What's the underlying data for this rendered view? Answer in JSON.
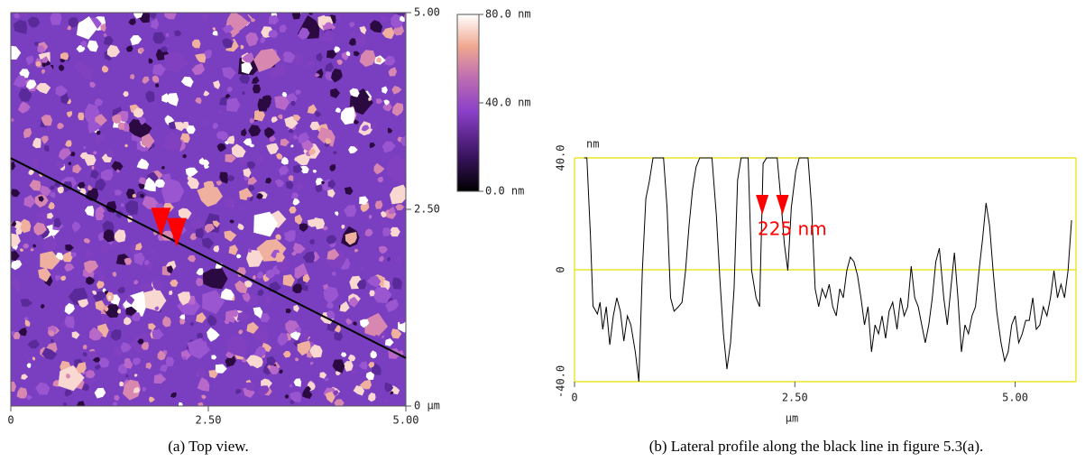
{
  "chart_data": [
    {
      "type": "image",
      "xlim": [
        0,
        5
      ],
      "ylim": [
        0,
        5
      ],
      "xticks": [
        {
          "value": 0,
          "label": "0"
        },
        {
          "value": 2.5,
          "label": "2.50"
        },
        {
          "value": 5,
          "label": "5.00"
        }
      ],
      "yticks": [
        {
          "value": 0,
          "label": "0 µm"
        },
        {
          "value": 2.5,
          "label": "2.50"
        },
        {
          "value": 5,
          "label": "5.00"
        }
      ],
      "clim": [
        0,
        80
      ],
      "cticks": [
        {
          "value": 0,
          "label": "0.0 nm"
        },
        {
          "value": 40,
          "label": "40.0 nm"
        },
        {
          "value": 80,
          "label": "80.0 nm"
        }
      ],
      "line": {
        "x": [
          0,
          5
        ],
        "y": [
          3.15,
          0.61
        ],
        "color": "#000000"
      },
      "markers": {
        "x": [
          1.9,
          2.1
        ],
        "y": [
          2.29,
          2.16
        ],
        "color": "#ff0000"
      },
      "caption": "(a) Top view."
    },
    {
      "type": "line",
      "x_label": "µm",
      "y_label": "nm",
      "annotation": "225 nm",
      "xlim": [
        0,
        5.69
      ],
      "ylim": [
        -40,
        40
      ],
      "xticks": [
        {
          "value": 0,
          "label": "0"
        },
        {
          "value": 2.5,
          "label": "2.50"
        },
        {
          "value": 5,
          "label": "5.00"
        }
      ],
      "yticks": [
        {
          "value": -40,
          "label": "-40.0"
        },
        0,
        {
          "value": 40,
          "label": "40.0"
        }
      ],
      "grid_color": "#e8e000",
      "color": "#000000",
      "markers": {
        "x": [
          2.13,
          2.36
        ],
        "color": "#ff0000"
      },
      "x": [
        0.11,
        0.14,
        0.18,
        0.21,
        0.26,
        0.29,
        0.32,
        0.36,
        0.4,
        0.44,
        0.48,
        0.52,
        0.56,
        0.6,
        0.64,
        0.69,
        0.73,
        0.77,
        0.81,
        0.85,
        0.89,
        1.01,
        1.05,
        1.09,
        1.13,
        1.18,
        1.22,
        1.26,
        1.3,
        1.34,
        1.38,
        1.42,
        1.56,
        1.61,
        1.65,
        1.69,
        1.73,
        1.77,
        1.81,
        1.85,
        1.89,
        1.97,
        2.01,
        2.06,
        2.1,
        2.14,
        2.18,
        2.3,
        2.34,
        2.38,
        2.42,
        2.46,
        2.51,
        2.55,
        2.65,
        2.69,
        2.73,
        2.77,
        2.81,
        2.85,
        2.89,
        2.93,
        2.97,
        3.01,
        3.05,
        3.09,
        3.13,
        3.17,
        3.21,
        3.25,
        3.29,
        3.33,
        3.37,
        3.41,
        3.45,
        3.49,
        3.53,
        3.57,
        3.61,
        3.66,
        3.7,
        3.74,
        3.78,
        3.82,
        3.86,
        3.9,
        3.94,
        3.98,
        4.02,
        4.06,
        4.1,
        4.14,
        4.19,
        4.23,
        4.27,
        4.31,
        4.35,
        4.39,
        4.43,
        4.47,
        4.51,
        4.55,
        4.59,
        4.63,
        4.67,
        4.71,
        4.75,
        4.79,
        4.84,
        4.88,
        4.92,
        4.96,
        5.0,
        5.04,
        5.08,
        5.12,
        5.16,
        5.2,
        5.24,
        5.28,
        5.32,
        5.36,
        5.4,
        5.44,
        5.48,
        5.52,
        5.56,
        5.6,
        5.64
      ],
      "values": [
        40,
        40,
        12.6,
        -13,
        -15.8,
        -11.6,
        -21.3,
        -13.2,
        -26.8,
        -16.5,
        -10,
        -14.8,
        -25.5,
        -16.5,
        -19.7,
        -29.4,
        -40,
        -0.3,
        25.5,
        31.9,
        40,
        40,
        22.3,
        -10,
        -14.8,
        -13.2,
        -11.6,
        -0.3,
        15.8,
        28.7,
        36.8,
        40,
        40,
        19.4,
        -3.5,
        -22.9,
        -35.5,
        -26.1,
        -6.8,
        32,
        40,
        40,
        -0.3,
        -10,
        -13.2,
        38,
        40,
        40,
        25.5,
        9.4,
        -0.3,
        22.3,
        35.2,
        40,
        40,
        22.3,
        -6.8,
        -13.2,
        -6.8,
        -10,
        -5.2,
        -13.2,
        -16.5,
        -6.8,
        -10,
        -0.3,
        4.5,
        2.9,
        -1.9,
        -10,
        -19.7,
        -13.2,
        -29.4,
        -19.7,
        -22.9,
        -16.5,
        -24.5,
        -14.8,
        -11.6,
        -21.3,
        -10,
        -16.5,
        -13.2,
        1.3,
        -10,
        -13.2,
        -19.7,
        -26.1,
        -19.7,
        -10,
        2.9,
        7.7,
        -10,
        -19.7,
        -6.8,
        6.1,
        -10,
        -29.4,
        -19.7,
        -22.9,
        -16.5,
        -13.2,
        -0.3,
        10.9,
        23.9,
        15.8,
        -0.3,
        -14.8,
        -26.1,
        -32.6,
        -29.4,
        -19.7,
        -16.5,
        -26.1,
        -22.9,
        -18.1,
        -18.1,
        -10,
        -21.3,
        -19.7,
        -13.2,
        -16.5,
        -10,
        -0.3,
        -10,
        -5.2,
        -10,
        -0.3,
        17.7
      ],
      "caption": "(b) Lateral profile along the black line in figure 5.3(a)."
    }
  ]
}
